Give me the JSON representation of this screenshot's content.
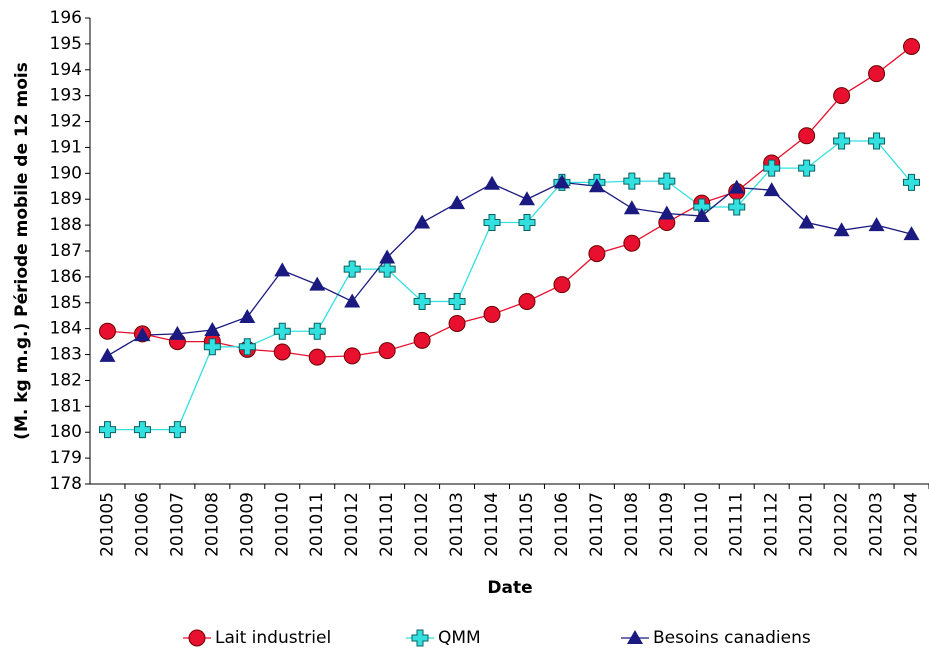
{
  "chart_data": {
    "type": "line",
    "y_label": "(M. kg m.g.) Période mobile de 12 mois",
    "x_label": "Date",
    "categories": [
      "201005",
      "201006",
      "201007",
      "201008",
      "201009",
      "201010",
      "201011",
      "201012",
      "201101",
      "201102",
      "201103",
      "201104",
      "201105",
      "201106",
      "201107",
      "201108",
      "201109",
      "201110",
      "201111",
      "201112",
      "201201",
      "201202",
      "201203",
      "201204"
    ],
    "series": [
      {
        "name": "Lait industriel",
        "color": "#e8102e",
        "marker": "circle",
        "values": [
          183.9,
          183.8,
          183.5,
          183.5,
          183.2,
          183.1,
          182.9,
          182.95,
          183.15,
          183.55,
          184.2,
          184.55,
          185.05,
          185.7,
          186.9,
          187.3,
          188.1,
          188.85,
          189.3,
          190.4,
          191.45,
          193.0,
          193.85,
          194.9
        ]
      },
      {
        "name": "QMM",
        "color": "#33e0e0",
        "marker": "plus",
        "values": [
          180.1,
          180.1,
          180.1,
          183.3,
          183.3,
          183.9,
          183.9,
          186.3,
          186.3,
          185.05,
          185.05,
          188.1,
          188.1,
          189.65,
          189.65,
          189.7,
          189.7,
          188.7,
          188.7,
          190.2,
          190.2,
          191.25,
          191.25,
          189.65
        ]
      },
      {
        "name": "Besoins canadiens",
        "color": "#1a1a80",
        "marker": "triangle",
        "values": [
          182.95,
          183.75,
          183.8,
          183.95,
          184.45,
          186.25,
          185.7,
          185.05,
          186.75,
          188.1,
          188.85,
          189.6,
          189.0,
          189.65,
          189.5,
          188.65,
          188.45,
          188.35,
          189.45,
          189.35,
          188.1,
          187.8,
          188.0,
          187.65
        ]
      }
    ],
    "ylim": [
      178,
      196
    ],
    "yticks": [
      178,
      179,
      180,
      181,
      182,
      183,
      184,
      185,
      186,
      187,
      188,
      189,
      190,
      191,
      192,
      193,
      194,
      195,
      196
    ]
  }
}
